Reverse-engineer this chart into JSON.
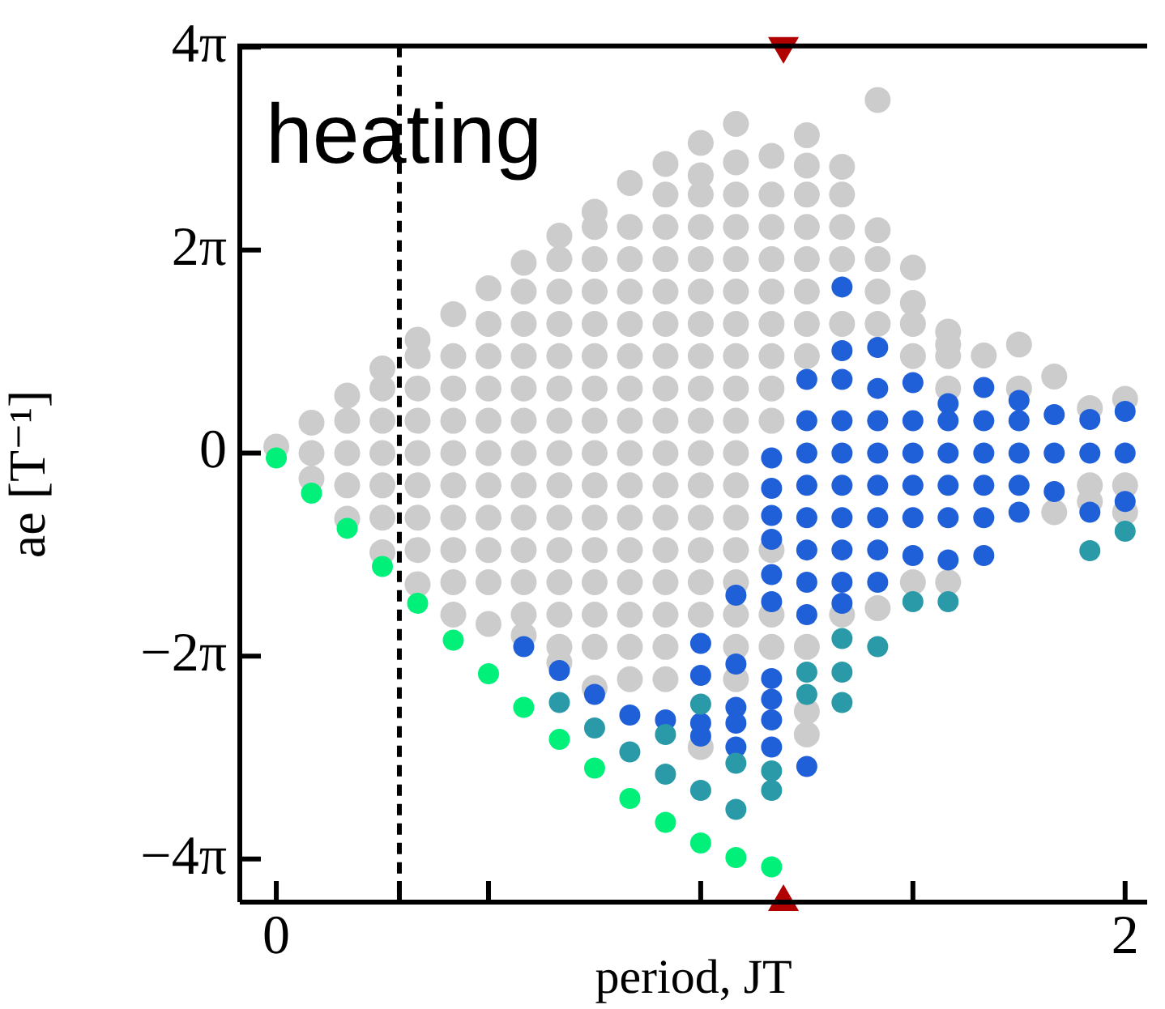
{
  "chart_data": {
    "type": "scatter",
    "xlabel": "period, JT",
    "ylabel": "ae [T⁻¹]",
    "annotations": [
      "heating"
    ],
    "xlim": [
      -0.086,
      2.052
    ],
    "ylim": [
      -13.9,
      12.6
    ],
    "xticks": [
      0,
      {
        "value": 0.29,
        "label": null
      },
      {
        "value": 0.5,
        "label": null
      },
      {
        "value": 1,
        "label": null
      },
      {
        "value": 1.5,
        "label": null
      },
      2
    ],
    "yticks": [
      {
        "value": -12.566,
        "label": "−4π"
      },
      {
        "value": -6.283,
        "label": "−2π"
      },
      0,
      {
        "value": 6.283,
        "label": "2π"
      },
      {
        "value": 12.566,
        "label": "4π"
      }
    ],
    "grid": false,
    "legend": false,
    "marker": "circle",
    "ref_lines": [
      {
        "axis": "x",
        "value": 0.29,
        "color": "#000000",
        "line_style": "dashed"
      }
    ],
    "series": [
      {
        "color": "#cccccc",
        "x": [
          0,
          0.083,
          0.083,
          0.083,
          0.167,
          0.167,
          0.167,
          0.167,
          0.167,
          0.25,
          0.25,
          0.25,
          0.25,
          0.25,
          0.25,
          0.25,
          0.333,
          0.333,
          0.333,
          0.333,
          0.333,
          0.333,
          0.333,
          0.333,
          0.333,
          0.417,
          0.417,
          0.417,
          0.417,
          0.417,
          0.417,
          0.417,
          0.417,
          0.417,
          0.417,
          0.5,
          0.5,
          0.5,
          0.5,
          0.5,
          0.5,
          0.5,
          0.5,
          0.5,
          0.5,
          0.5,
          0.583,
          0.583,
          0.583,
          0.583,
          0.583,
          0.583,
          0.583,
          0.583,
          0.583,
          0.583,
          0.583,
          0.583,
          0.583,
          0.667,
          0.667,
          0.667,
          0.667,
          0.667,
          0.667,
          0.667,
          0.667,
          0.667,
          0.667,
          0.667,
          0.667,
          0.667,
          0.667,
          0.667,
          0.75,
          0.75,
          0.75,
          0.75,
          0.75,
          0.75,
          0.75,
          0.75,
          0.75,
          0.75,
          0.75,
          0.75,
          0.75,
          0.75,
          0.75,
          0.75,
          0.833,
          0.833,
          0.833,
          0.833,
          0.833,
          0.833,
          0.833,
          0.833,
          0.833,
          0.833,
          0.833,
          0.833,
          0.833,
          0.833,
          0.833,
          0.833,
          0.917,
          0.917,
          0.917,
          0.917,
          0.917,
          0.917,
          0.917,
          0.917,
          0.917,
          0.917,
          0.917,
          0.917,
          0.917,
          0.917,
          0.917,
          0.917,
          0.917,
          1,
          1,
          1,
          1,
          1,
          1,
          1,
          1,
          1,
          1,
          1,
          1,
          1,
          1,
          1,
          1,
          1,
          1.083,
          1.083,
          1.083,
          1.083,
          1.083,
          1.083,
          1.083,
          1.083,
          1.083,
          1.083,
          1.083,
          1.083,
          1.083,
          1.083,
          1.083,
          1.083,
          1.083,
          1.083,
          1.167,
          1.167,
          1.167,
          1.167,
          1.167,
          1.167,
          1.167,
          1.167,
          1.167,
          1.167,
          1.167,
          1.167,
          1.25,
          1.25,
          1.25,
          1.25,
          1.25,
          1.25,
          1.25,
          1.25,
          1.25,
          1.25,
          1.25,
          1.333,
          1.333,
          1.333,
          1.333,
          1.333,
          1.333,
          1.417,
          1.417,
          1.417,
          1.417,
          1.417,
          1.417,
          1.5,
          1.5,
          1.5,
          1.5,
          1.5,
          1.583,
          1.583,
          1.583,
          1.583,
          1.583,
          1.667,
          1.75,
          1.75,
          1.833,
          1.833,
          1.917,
          1.917,
          1.917,
          2,
          2,
          2
        ],
        "values": [
          0.2,
          0.94,
          0,
          -0.79,
          1.78,
          1,
          0,
          -1,
          -2.03,
          2.62,
          2,
          1,
          0,
          -1,
          -2,
          -3.07,
          3.51,
          3,
          2,
          1,
          0,
          -1,
          -2,
          -3,
          -4.06,
          4.3,
          3,
          2,
          1,
          0,
          -1,
          -2,
          -3,
          -4,
          -5,
          5.1,
          4,
          3,
          2,
          1,
          0,
          -1,
          -2,
          -3,
          -4,
          -5.29,
          5.89,
          5,
          4,
          3,
          2,
          1,
          0,
          -1,
          -2,
          -3,
          -4,
          -5,
          -5.64,
          6.73,
          6,
          5,
          4,
          3,
          2,
          1,
          0,
          -1,
          -2,
          -3,
          -4,
          -5,
          -6,
          -6.48,
          7.47,
          7,
          6,
          5,
          4,
          3,
          2,
          1,
          0,
          -1,
          -2,
          -3,
          -4,
          -5,
          -6,
          -7.27,
          8.36,
          7,
          6,
          5,
          4,
          3,
          2,
          1,
          0,
          -1,
          -2,
          -3,
          -4,
          -5,
          -6,
          -7,
          8.95,
          8,
          7,
          6,
          5,
          4,
          3,
          2,
          1,
          0,
          -1,
          -2,
          -3,
          -4,
          -5,
          -6,
          -7,
          9.6,
          8.6,
          8,
          7,
          6,
          5,
          4,
          3,
          2,
          1,
          0,
          -1,
          -2,
          -3,
          -4,
          -5,
          -9.1,
          10.19,
          9,
          8,
          7,
          6,
          5,
          4,
          3,
          2,
          1,
          0,
          -1,
          -2,
          -3,
          -4,
          -5,
          -6,
          -7,
          9.2,
          8,
          7,
          6,
          5,
          4,
          3,
          2,
          1,
          -3,
          -5,
          -6,
          9.84,
          8.9,
          8,
          7,
          6,
          5,
          4,
          3,
          -6,
          -8,
          -8.71,
          8.86,
          8,
          7,
          6,
          4,
          -5,
          10.93,
          6.9,
          6,
          5,
          4,
          -4.8,
          5.74,
          4.65,
          4,
          3,
          -4,
          3.76,
          3.36,
          3,
          2,
          -4,
          3.02,
          3.36,
          2,
          2.37,
          -1.83,
          1.39,
          -1,
          -1.5,
          1.68,
          -1,
          -1.83
        ]
      },
      {
        "color": "#1f5fd8",
        "x": [
          0.583,
          0.667,
          0.75,
          0.833,
          0.917,
          1,
          1,
          1,
          1,
          1.083,
          1.083,
          1.083,
          1.083,
          1.083,
          1.167,
          1.167,
          1.167,
          1.167,
          1.167,
          1.167,
          1.167,
          1.167,
          1.167,
          1.167,
          1.25,
          1.25,
          1.25,
          1.25,
          1.25,
          1.25,
          1.25,
          1.25,
          1.25,
          1.333,
          1.333,
          1.333,
          1.333,
          1.333,
          1.333,
          1.333,
          1.333,
          1.333,
          1.333,
          1.417,
          1.417,
          1.417,
          1.417,
          1.417,
          1.417,
          1.417,
          1.417,
          1.5,
          1.5,
          1.5,
          1.5,
          1.5,
          1.5,
          1.583,
          1.583,
          1.583,
          1.583,
          1.583,
          1.583,
          1.667,
          1.667,
          1.667,
          1.667,
          1.667,
          1.667,
          1.75,
          1.75,
          1.75,
          1.75,
          1.75,
          1.833,
          1.833,
          1.833,
          1.917,
          1.917,
          1.917,
          2,
          2,
          2
        ],
        "values": [
          -5.99,
          -6.73,
          -7.47,
          -8.11,
          -8.26,
          -5.89,
          -6.88,
          -8.36,
          -8.76,
          -4.4,
          -6.53,
          -7.87,
          -8.36,
          -9.1,
          -0.15,
          -1.09,
          -1.93,
          -2.67,
          -3.76,
          -4.6,
          -6.98,
          -7.62,
          -8.26,
          -9.1,
          2.28,
          1,
          0,
          -1,
          -2,
          -3,
          -4,
          -5,
          -9.7,
          5.14,
          3.17,
          2.28,
          1,
          0,
          -1,
          -2,
          -3,
          -4,
          -4.65,
          3.27,
          2,
          1,
          0,
          -1,
          -2,
          -3,
          -4,
          2.18,
          1,
          0,
          -1,
          -2,
          -3.17,
          1.53,
          1,
          0,
          -1,
          -2,
          -3.31,
          2.03,
          1,
          0,
          -1,
          -2,
          -3.17,
          1.63,
          1,
          0,
          -1,
          -1.83,
          1.19,
          0,
          -1.19,
          1.04,
          0,
          -1.83,
          1.29,
          0,
          -1.5
        ]
      },
      {
        "color": "#2a9aa8",
        "x": [
          0.667,
          0.75,
          0.833,
          0.917,
          0.917,
          1,
          1,
          1.083,
          1.083,
          1.167,
          1.167,
          1.25,
          1.25,
          1.333,
          1.333,
          1.333,
          1.417,
          1.5,
          1.583,
          1.917,
          2
        ],
        "values": [
          -7.72,
          -8.51,
          -9.25,
          -8.71,
          -9.94,
          -7.77,
          -10.44,
          -9.6,
          -11.03,
          -9.84,
          -10.44,
          -6.78,
          -7.47,
          -5.74,
          -6.78,
          -7.72,
          -5.99,
          -4.6,
          -4.6,
          -3.02,
          -2.42
        ]
      },
      {
        "color": "#00f07a",
        "x": [
          0,
          0.083,
          0.167,
          0.25,
          0.333,
          0.417,
          0.5,
          0.583,
          0.667,
          0.75,
          0.833,
          0.917,
          1,
          1.083,
          1.167
        ],
        "values": [
          -0.15,
          -1.24,
          -2.33,
          -3.51,
          -4.65,
          -5.79,
          -6.83,
          -7.87,
          -8.86,
          -9.75,
          -10.69,
          -11.43,
          -12.07,
          -12.52,
          -12.81
        ]
      },
      {
        "color": "#b00000",
        "marker": "triangle",
        "x": [
          1.195,
          1.195
        ],
        "values": [
          12.6,
          -13.9
        ]
      }
    ]
  }
}
